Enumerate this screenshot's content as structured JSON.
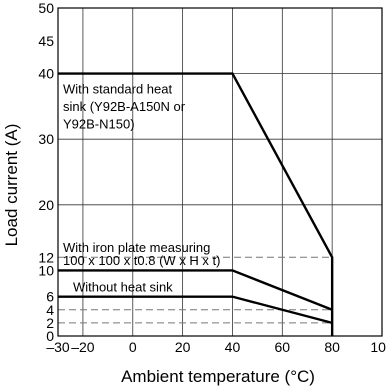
{
  "chart_data": {
    "type": "line",
    "xlabel": "Ambient temperature (°C)",
    "ylabel": "Load current (A)",
    "xlim": [
      -30,
      100
    ],
    "ylim": [
      0,
      50
    ],
    "x_ticks": [
      {
        "value": -30,
        "label": "–30"
      },
      {
        "value": -20,
        "label": "–20"
      },
      {
        "value": 0,
        "label": "0"
      },
      {
        "value": 20,
        "label": "20"
      },
      {
        "value": 40,
        "label": "40"
      },
      {
        "value": 60,
        "label": "60"
      },
      {
        "value": 80,
        "label": "80"
      },
      {
        "value": 100,
        "label": "100"
      }
    ],
    "y_ticks": [
      {
        "value": 0,
        "label": "0"
      },
      {
        "value": 2,
        "label": "2"
      },
      {
        "value": 4,
        "label": "4"
      },
      {
        "value": 6,
        "label": "6"
      },
      {
        "value": 10,
        "label": "10"
      },
      {
        "value": 12,
        "label": "12"
      },
      {
        "value": 20,
        "label": "20"
      },
      {
        "value": 30,
        "label": "30"
      },
      {
        "value": 40,
        "label": "40"
      },
      {
        "value": 45,
        "label": "45"
      },
      {
        "value": 50,
        "label": "50"
      }
    ],
    "grid_x": [
      -20,
      0,
      20,
      40,
      60,
      80
    ],
    "grid_y": [
      20,
      30,
      40
    ],
    "grid": true,
    "series": [
      {
        "key": "standard",
        "x": [
          -30,
          40,
          80,
          80
        ],
        "y": [
          40,
          40,
          12,
          0
        ]
      },
      {
        "key": "iron",
        "x": [
          -30,
          40,
          80
        ],
        "y": [
          10,
          10,
          4
        ]
      },
      {
        "key": "none",
        "x": [
          -30,
          40,
          80
        ],
        "y": [
          6,
          6,
          2
        ]
      }
    ],
    "reference_lines": [
      12,
      4,
      2
    ],
    "annotations": [
      {
        "key": "standard-1",
        "text": "With standard heat",
        "x": -28,
        "y": 37
      },
      {
        "key": "standard-2",
        "text": "sink (Y92B-A150N or",
        "x": -28,
        "y": 34.3
      },
      {
        "key": "standard-3",
        "text": "Y92B-N150)",
        "x": -28,
        "y": 31.6
      },
      {
        "key": "iron-1",
        "text": "With iron plate measuring",
        "x": -28,
        "y": 12.8
      },
      {
        "key": "iron-2",
        "text": "100 x 100 x t0.8 (W x H x t)",
        "x": -28,
        "y": 10.8
      },
      {
        "key": "none-1",
        "text": "Without heat sink",
        "x": -24,
        "y": 6.8
      }
    ]
  }
}
